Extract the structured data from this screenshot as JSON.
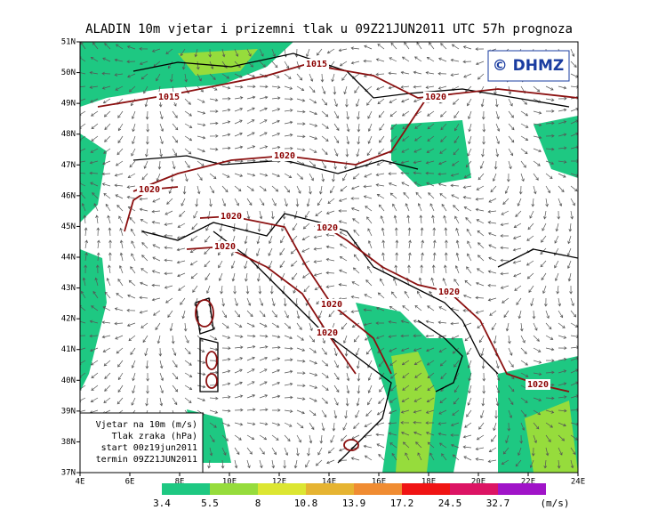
{
  "header": {
    "title": "ALADIN 10m vjetar i prizemni tlak u 09Z21JUN2011 UTC 57h prognoza",
    "logo": "© DHMZ"
  },
  "map": {
    "lon_labels": [
      "4E",
      "6E",
      "8E",
      "10E",
      "12E",
      "14E",
      "16E",
      "18E",
      "20E",
      "22E",
      "24E"
    ],
    "lat_labels": [
      "37N",
      "38N",
      "39N",
      "40N",
      "41N",
      "42N",
      "43N",
      "44N",
      "45N",
      "46N",
      "47N",
      "48N",
      "49N",
      "50N",
      "51N"
    ],
    "isobar_labels": [
      "1015",
      "1015",
      "1020",
      "1020",
      "1020",
      "1020",
      "1020",
      "1020",
      "1020",
      "1020",
      "1020",
      "1020"
    ]
  },
  "info_box": {
    "lines": [
      "Vjetar na 10m (m/s)",
      "Tlak zraka (hPa)",
      "start 00z19jun2011",
      "termin 09Z21JUN2011"
    ]
  },
  "colorbar": {
    "levels": [
      3.4,
      5.5,
      8,
      10.8,
      13.9,
      17.2,
      24.5,
      32.7
    ],
    "colors": [
      "#1ec882",
      "#96dc3c",
      "#dce632",
      "#e6b432",
      "#f08c32",
      "#f01414",
      "#dc1464",
      "#a014c8"
    ],
    "unit": "(m/s)"
  }
}
